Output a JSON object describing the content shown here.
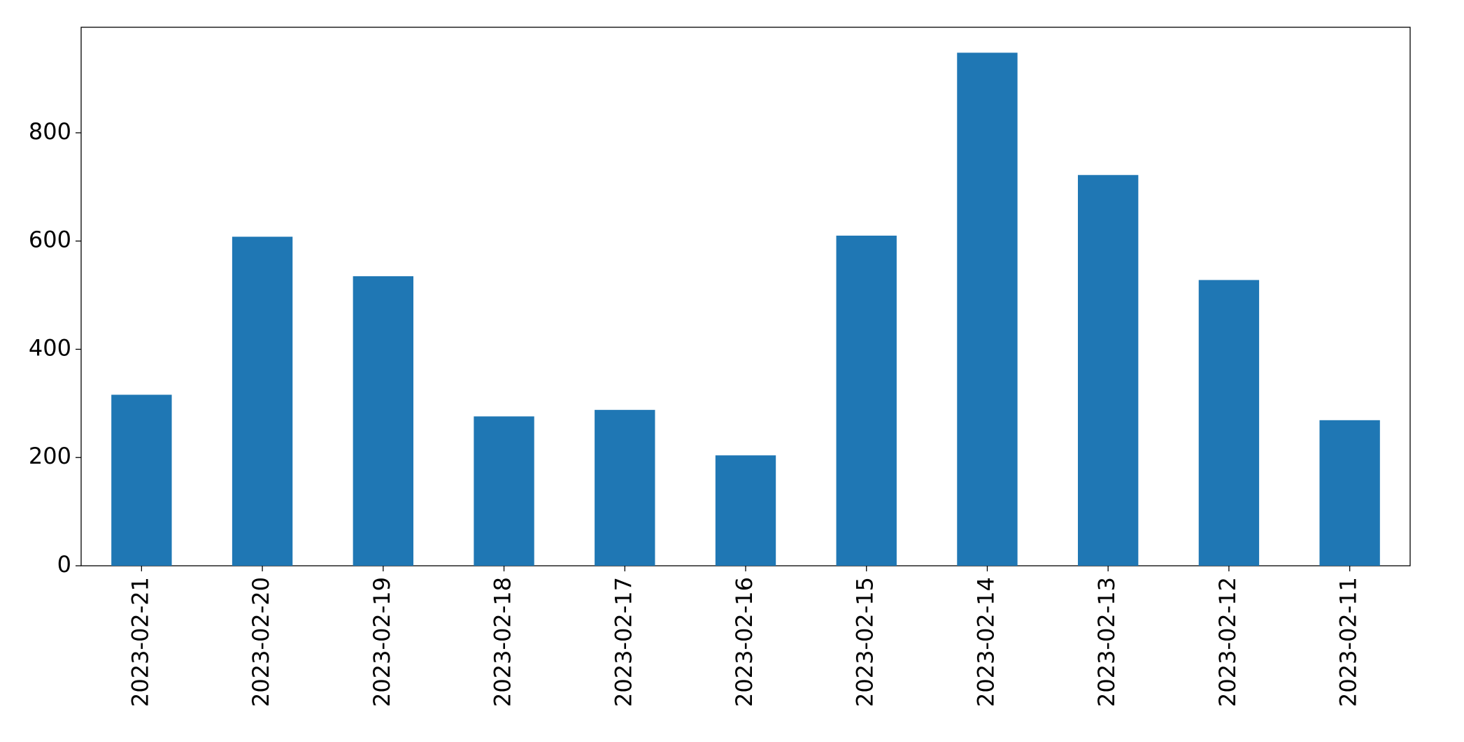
{
  "chart_data": {
    "type": "bar",
    "categories": [
      "2023-02-21",
      "2023-02-20",
      "2023-02-19",
      "2023-02-18",
      "2023-02-17",
      "2023-02-16",
      "2023-02-15",
      "2023-02-14",
      "2023-02-13",
      "2023-02-12",
      "2023-02-11"
    ],
    "values": [
      316,
      608,
      535,
      276,
      288,
      204,
      610,
      948,
      722,
      528,
      269
    ],
    "color": "#1f77b4",
    "ylim": [
      0,
      995
    ],
    "yticks": [
      0,
      200,
      400,
      600,
      800
    ],
    "grid": false
  }
}
